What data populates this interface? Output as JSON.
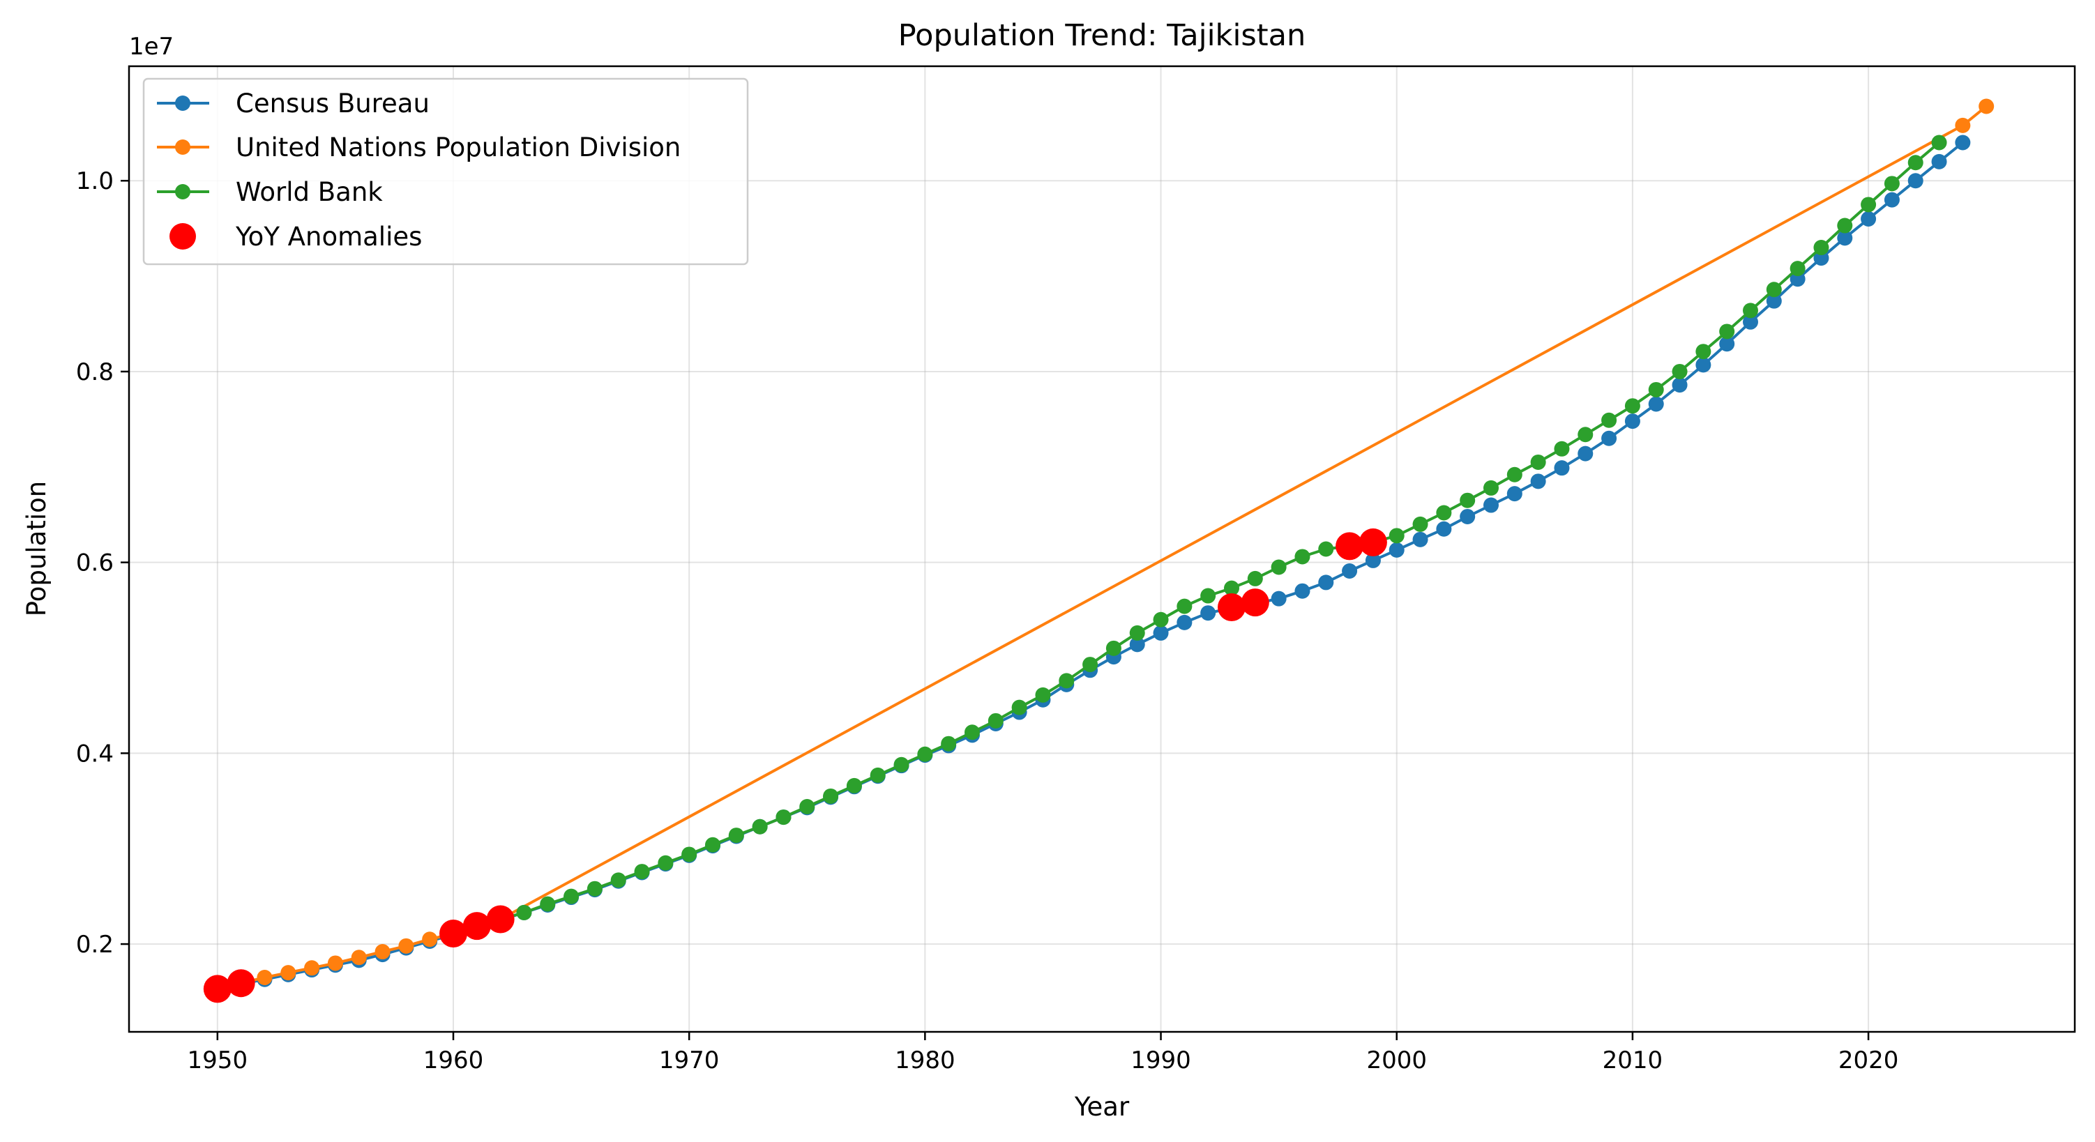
{
  "chart_data": {
    "type": "line",
    "title": "Population Trend: Tajikistan",
    "xlabel": "Year",
    "ylabel": "Population",
    "y_scale_label": "1e7",
    "xlim": [
      1946.25,
      2028.75
    ],
    "ylim": [
      1080000,
      11200000
    ],
    "x_ticks": [
      1950,
      1960,
      1970,
      1980,
      1990,
      2000,
      2010,
      2020
    ],
    "x_tick_labels": [
      "1950",
      "1960",
      "1970",
      "1980",
      "1990",
      "2000",
      "2010",
      "2020"
    ],
    "y_ticks": [
      2000000,
      4000000,
      6000000,
      8000000,
      10000000
    ],
    "y_tick_labels": [
      "0.2",
      "0.4",
      "0.6",
      "0.8",
      "1.0"
    ],
    "grid": true,
    "legend_position": "top-left",
    "colors": {
      "census": "#1f77b4",
      "un": "#ff7f0e",
      "world_bank": "#2ca02c",
      "anomaly": "#ff0000"
    },
    "series": [
      {
        "name": "Census Bureau",
        "color": "#1f77b4",
        "x": [
          1950,
          1951,
          1952,
          1953,
          1954,
          1955,
          1956,
          1957,
          1958,
          1959,
          1960,
          1961,
          1962,
          1963,
          1964,
          1965,
          1966,
          1967,
          1968,
          1969,
          1970,
          1971,
          1972,
          1973,
          1974,
          1975,
          1976,
          1977,
          1978,
          1979,
          1980,
          1981,
          1982,
          1983,
          1984,
          1985,
          1986,
          1987,
          1988,
          1989,
          1990,
          1991,
          1992,
          1993,
          1994,
          1995,
          1996,
          1997,
          1998,
          1999,
          2000,
          2001,
          2002,
          2003,
          2004,
          2005,
          2006,
          2007,
          2008,
          2009,
          2010,
          2011,
          2012,
          2013,
          2014,
          2015,
          2016,
          2017,
          2018,
          2019,
          2020,
          2021,
          2022,
          2023,
          2024
        ],
        "y": [
          1530000,
          1580000,
          1630000,
          1680000,
          1730000,
          1780000,
          1830000,
          1890000,
          1960000,
          2030000,
          2100000,
          2180000,
          2250000,
          2330000,
          2410000,
          2490000,
          2570000,
          2660000,
          2750000,
          2840000,
          2930000,
          3030000,
          3130000,
          3230000,
          3330000,
          3430000,
          3540000,
          3650000,
          3760000,
          3870000,
          3980000,
          4080000,
          4190000,
          4310000,
          4430000,
          4560000,
          4720000,
          4870000,
          5010000,
          5140000,
          5260000,
          5370000,
          5470000,
          5520000,
          5570000,
          5620000,
          5700000,
          5790000,
          5910000,
          6020000,
          6130000,
          6240000,
          6350000,
          6480000,
          6600000,
          6720000,
          6850000,
          6990000,
          7140000,
          7300000,
          7480000,
          7660000,
          7860000,
          8070000,
          8290000,
          8520000,
          8740000,
          8970000,
          9190000,
          9400000,
          9600000,
          9800000,
          10000000,
          10200000,
          10400000
        ]
      },
      {
        "name": "United Nations Population Division",
        "color": "#ff7f0e",
        "x": [
          1950,
          1951,
          1952,
          1953,
          1954,
          1955,
          1956,
          1957,
          1958,
          1959,
          1960,
          1961,
          1962,
          2024,
          2025
        ],
        "y": [
          1530000,
          1590000,
          1650000,
          1700000,
          1750000,
          1800000,
          1860000,
          1920000,
          1980000,
          2050000,
          2110000,
          2190000,
          2260000,
          10580000,
          10780000
        ]
      },
      {
        "name": "World Bank",
        "color": "#2ca02c",
        "x": [
          1960,
          1961,
          1962,
          1963,
          1964,
          1965,
          1966,
          1967,
          1968,
          1969,
          1970,
          1971,
          1972,
          1973,
          1974,
          1975,
          1976,
          1977,
          1978,
          1979,
          1980,
          1981,
          1982,
          1983,
          1984,
          1985,
          1986,
          1987,
          1988,
          1989,
          1990,
          1991,
          1992,
          1993,
          1994,
          1995,
          1996,
          1997,
          1998,
          1999,
          2000,
          2001,
          2002,
          2003,
          2004,
          2005,
          2006,
          2007,
          2008,
          2009,
          2010,
          2011,
          2012,
          2013,
          2014,
          2015,
          2016,
          2017,
          2018,
          2019,
          2020,
          2021,
          2022,
          2023
        ],
        "y": [
          2110000,
          2190000,
          2260000,
          2330000,
          2420000,
          2500000,
          2580000,
          2670000,
          2760000,
          2850000,
          2940000,
          3040000,
          3140000,
          3230000,
          3330000,
          3440000,
          3550000,
          3660000,
          3770000,
          3880000,
          3990000,
          4100000,
          4220000,
          4340000,
          4480000,
          4610000,
          4760000,
          4930000,
          5100000,
          5260000,
          5400000,
          5540000,
          5650000,
          5730000,
          5830000,
          5950000,
          6060000,
          6140000,
          6170000,
          6210000,
          6280000,
          6400000,
          6520000,
          6650000,
          6780000,
          6920000,
          7050000,
          7190000,
          7340000,
          7490000,
          7640000,
          7810000,
          8000000,
          8210000,
          8420000,
          8640000,
          8860000,
          9080000,
          9300000,
          9530000,
          9750000,
          9970000,
          10190000,
          10400000
        ]
      }
    ],
    "anomalies": {
      "name": "YoY Anomalies",
      "color": "#ff0000",
      "x": [
        1950,
        1951,
        1960,
        1961,
        1962,
        1993,
        1994,
        1998,
        1999
      ],
      "y": [
        1530000,
        1590000,
        2110000,
        2190000,
        2260000,
        5530000,
        5580000,
        6170000,
        6210000
      ]
    }
  }
}
